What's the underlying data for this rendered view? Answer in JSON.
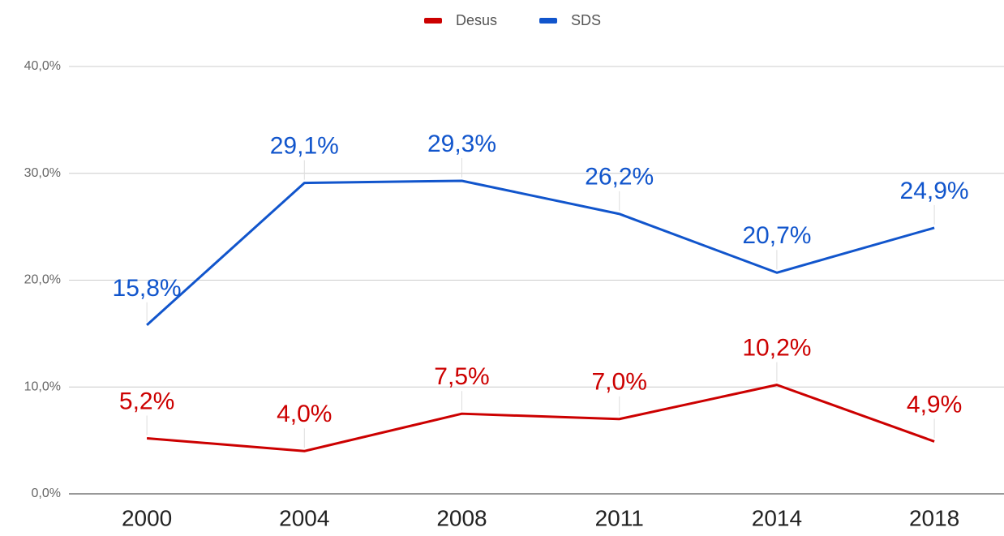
{
  "chart_data": {
    "type": "line",
    "categories": [
      "2000",
      "2004",
      "2008",
      "2011",
      "2014",
      "2018"
    ],
    "series": [
      {
        "name": "Desus",
        "color": "#cc0000",
        "values": [
          5.2,
          4.0,
          7.5,
          7.0,
          10.2,
          4.9
        ],
        "value_labels": [
          "5,2%",
          "4,0%",
          "7,5%",
          "7,0%",
          "10,2%",
          "4,9%"
        ]
      },
      {
        "name": "SDS",
        "color": "#1155cc",
        "values": [
          15.8,
          29.1,
          29.3,
          26.2,
          20.7,
          24.9
        ],
        "value_labels": [
          "15,8%",
          "29,1%",
          "29,3%",
          "26,2%",
          "20,7%",
          "24,9%"
        ]
      }
    ],
    "ylim": [
      0,
      40
    ],
    "yticks": [
      {
        "value": 0,
        "label": "0,0%"
      },
      {
        "value": 10,
        "label": "10,0%"
      },
      {
        "value": 20,
        "label": "20,0%"
      },
      {
        "value": 30,
        "label": "30,0%"
      },
      {
        "value": 40,
        "label": "40,0%"
      }
    ],
    "grid": true,
    "legend": "top"
  }
}
